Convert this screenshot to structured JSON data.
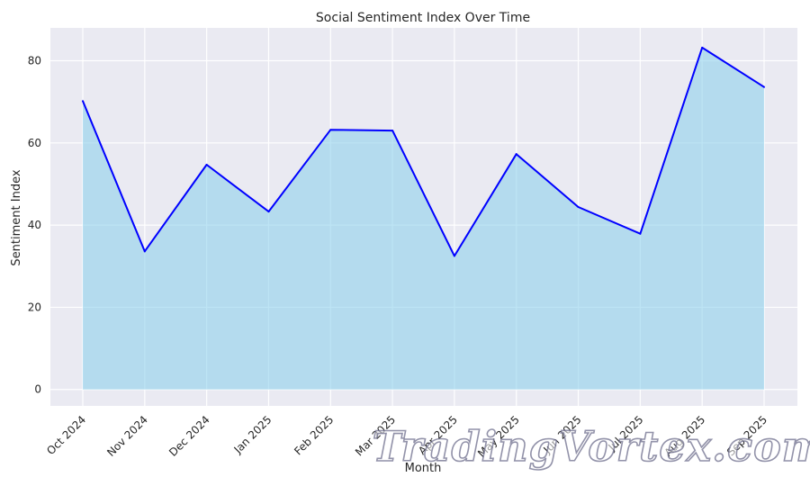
{
  "chart_data": {
    "type": "area",
    "title": "Social Sentiment Index Over Time",
    "xlabel": "Month",
    "ylabel": "Sentiment Index",
    "categories": [
      "Oct 2024",
      "Nov 2024",
      "Dec 2024",
      "Jan 2025",
      "Feb 2025",
      "Mar 2025",
      "Apr 2025",
      "May 2025",
      "Jun 2025",
      "Jul 2025",
      "Aug 2025",
      "Sep 2025"
    ],
    "values": [
      70.2,
      33.6,
      54.7,
      43.3,
      63.2,
      63.0,
      32.5,
      57.3,
      44.4,
      37.9,
      83.2,
      73.6
    ],
    "ylim": [
      -4,
      88
    ],
    "yticks": [
      0,
      20,
      40,
      60,
      80
    ],
    "grid": true,
    "line_color": "#0000ff",
    "fill_color": "#87ceeb",
    "background_color": "#eaeaf2"
  },
  "watermark": "TradingVortex.com"
}
